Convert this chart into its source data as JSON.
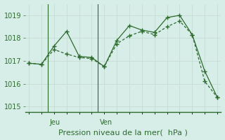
{
  "line1_x": [
    0,
    1,
    2,
    3,
    4,
    5,
    6,
    7,
    8,
    9,
    10,
    11,
    12,
    13,
    14,
    15
  ],
  "line1_y": [
    1016.9,
    1016.85,
    1017.65,
    1018.3,
    1017.2,
    1017.15,
    1016.75,
    1017.9,
    1018.55,
    1018.35,
    1018.25,
    1018.9,
    1019.0,
    1018.15,
    1016.55,
    1015.4
  ],
  "line2_x": [
    0,
    1,
    2,
    3,
    4,
    5,
    6,
    7,
    8,
    9,
    10,
    11,
    12,
    13,
    14,
    15
  ],
  "line2_y": [
    1016.9,
    1016.85,
    1017.5,
    1017.3,
    1017.15,
    1017.1,
    1016.75,
    1017.75,
    1018.1,
    1018.3,
    1018.15,
    1018.5,
    1018.75,
    1018.15,
    1016.1,
    1015.4
  ],
  "jeu_line_x": 1.5,
  "ven_line_x": 5.5,
  "ylim": [
    1014.75,
    1019.5
  ],
  "yticks": [
    1015,
    1016,
    1017,
    1018,
    1019
  ],
  "xlim": [
    -0.3,
    15.3
  ],
  "line_color": "#2d6b2d",
  "bg_color": "#d6ede8",
  "grid_color_major": "#c8dcd5",
  "grid_color_minor": "#ddeee8",
  "xlabel": "Pression niveau de la mer(  hPa )",
  "xlabel_fontsize": 8,
  "tick_fontsize": 7,
  "marker": "+",
  "markersize": 4,
  "linewidth": 0.9,
  "jeu_label": "Jeu",
  "ven_label": "Ven"
}
